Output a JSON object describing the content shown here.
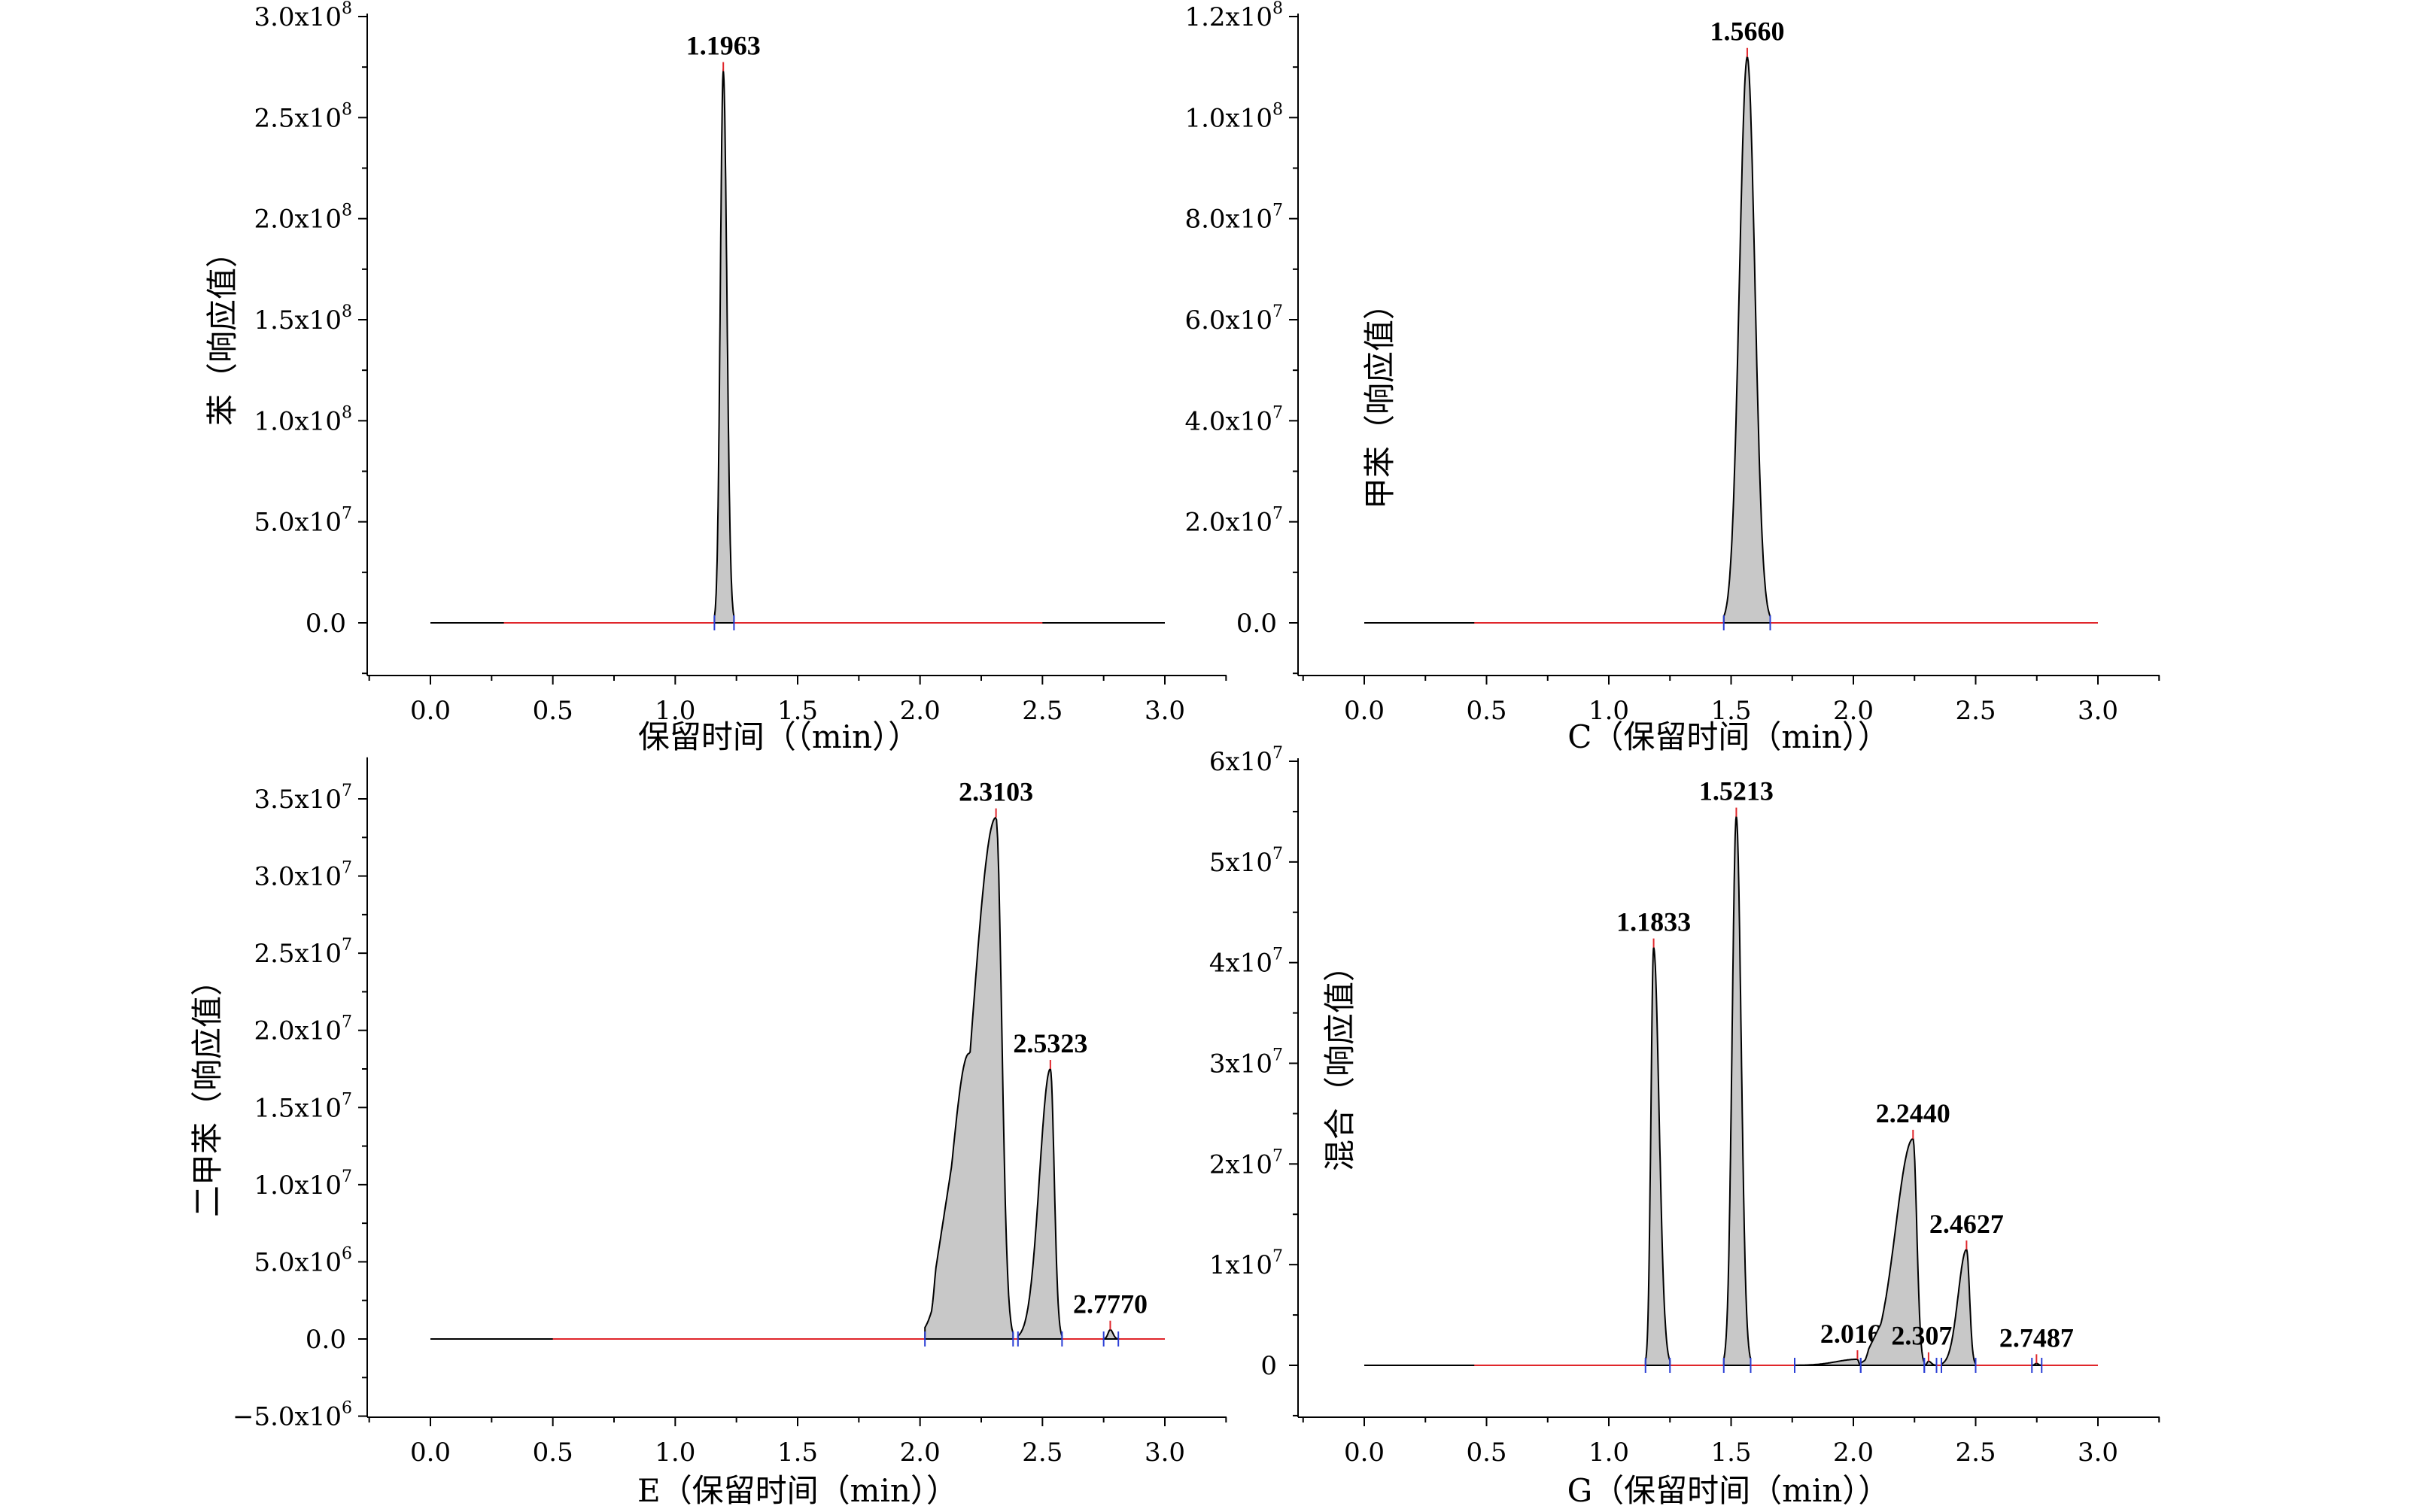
{
  "chart_data": [
    {
      "type": "line",
      "title": "",
      "xlabel": "保留时间（（min））",
      "ylabel": "苯（响应值）",
      "xlim": [
        -0.25,
        3.25
      ],
      "ylim": [
        -25000000.0,
        300000000.0
      ],
      "x_ticks": [
        {
          "v": 0,
          "label": "0.0"
        },
        {
          "v": 0.5,
          "label": "0.5"
        },
        {
          "v": 1,
          "label": "1.0"
        },
        {
          "v": 1.5,
          "label": "1.5"
        },
        {
          "v": 2,
          "label": "2.0"
        },
        {
          "v": 2.5,
          "label": "2.5"
        },
        {
          "v": 3,
          "label": "3.0"
        }
      ],
      "y_ticks": [
        {
          "v": 0,
          "mant": "0.0",
          "exp": ""
        },
        {
          "v": 50000000.0,
          "mant": "5.0x10",
          "exp": "7"
        },
        {
          "v": 100000000.0,
          "mant": "1.0x10",
          "exp": "8"
        },
        {
          "v": 150000000.0,
          "mant": "1.5x10",
          "exp": "8"
        },
        {
          "v": 200000000.0,
          "mant": "2.0x10",
          "exp": "8"
        },
        {
          "v": 250000000.0,
          "mant": "2.5x10",
          "exp": "8"
        },
        {
          "v": 300000000.0,
          "mant": "3.0x10",
          "exp": "8"
        }
      ],
      "baseline": {
        "x0": 0.0,
        "x1": 3.0,
        "red_from": 0.3,
        "red_to": 2.5
      },
      "peaks": [
        {
          "label": "1.1963",
          "rt": 1.1963,
          "height": 273000000.0,
          "left": 1.16,
          "right": 1.24,
          "shoulder": null
        }
      ]
    },
    {
      "type": "line",
      "title": "",
      "xlabel": "C（保留时间（min））",
      "ylabel": "甲苯（响应值）",
      "xlim": [
        -0.25,
        3.25
      ],
      "ylim": [
        -2500000.0,
        120000000.0
      ],
      "x_ticks": [
        {
          "v": 0,
          "label": "0.0"
        },
        {
          "v": 0.5,
          "label": "0.5"
        },
        {
          "v": 1,
          "label": "1.0"
        },
        {
          "v": 1.5,
          "label": "1.5"
        },
        {
          "v": 2,
          "label": "2.0"
        },
        {
          "v": 2.5,
          "label": "2.5"
        },
        {
          "v": 3,
          "label": "3.0"
        }
      ],
      "y_ticks": [
        {
          "v": 0,
          "mant": "0.0",
          "exp": ""
        },
        {
          "v": 20000000.0,
          "mant": "2.0x10",
          "exp": "7"
        },
        {
          "v": 40000000.0,
          "mant": "4.0x10",
          "exp": "7"
        },
        {
          "v": 60000000.0,
          "mant": "6.0x10",
          "exp": "7"
        },
        {
          "v": 80000000.0,
          "mant": "8.0x10",
          "exp": "7"
        },
        {
          "v": 100000000.0,
          "mant": "1.0x10",
          "exp": "8"
        },
        {
          "v": 120000000.0,
          "mant": "1.2x10",
          "exp": "8"
        }
      ],
      "baseline": {
        "x0": 0.0,
        "x1": 3.0,
        "red_from": 0.45,
        "red_to": 3.0
      },
      "peaks": [
        {
          "label": "1.5660",
          "rt": 1.566,
          "height": 112000000.0,
          "left": 1.47,
          "right": 1.66,
          "shoulder": null
        }
      ]
    },
    {
      "type": "line",
      "title": "",
      "xlabel": "E（保留时间（min））",
      "ylabel": "二甲苯（响应值）",
      "xlim": [
        -0.25,
        3.25
      ],
      "ylim": [
        -5000000.0,
        37500000.0
      ],
      "x_ticks": [
        {
          "v": 0,
          "label": "0.0"
        },
        {
          "v": 0.5,
          "label": "0.5"
        },
        {
          "v": 1,
          "label": "1.0"
        },
        {
          "v": 1.5,
          "label": "1.5"
        },
        {
          "v": 2,
          "label": "2.0"
        },
        {
          "v": 2.5,
          "label": "2.5"
        },
        {
          "v": 3,
          "label": "3.0"
        }
      ],
      "y_ticks": [
        {
          "v": -5000000.0,
          "mant": "−5.0x10",
          "exp": "6"
        },
        {
          "v": 0,
          "mant": "0.0",
          "exp": ""
        },
        {
          "v": 5000000.0,
          "mant": "5.0x10",
          "exp": "6"
        },
        {
          "v": 10000000.0,
          "mant": "1.0x10",
          "exp": "7"
        },
        {
          "v": 15000000.0,
          "mant": "1.5x10",
          "exp": "7"
        },
        {
          "v": 20000000.0,
          "mant": "2.0x10",
          "exp": "7"
        },
        {
          "v": 25000000.0,
          "mant": "2.5x10",
          "exp": "7"
        },
        {
          "v": 30000000.0,
          "mant": "3.0x10",
          "exp": "7"
        },
        {
          "v": 35000000.0,
          "mant": "3.5x10",
          "exp": "7"
        }
      ],
      "baseline": {
        "x0": 0.0,
        "x1": 3.0,
        "red_from": 0.5,
        "red_to": 3.0
      },
      "peaks": [
        {
          "label": "2.3103",
          "rt": 2.3103,
          "height": 33800000.0,
          "left": 2.02,
          "right": 2.38,
          "shoulder": {
            "x": 2.2,
            "y": 18500000.0
          }
        },
        {
          "label": "2.5323",
          "rt": 2.5323,
          "height": 17500000.0,
          "left": 2.4,
          "right": 2.58,
          "shoulder": null
        },
        {
          "label": "2.7770",
          "rt": 2.777,
          "height": 600000.0,
          "left": 2.75,
          "right": 2.81,
          "shoulder": null
        }
      ]
    },
    {
      "type": "line",
      "title": "",
      "xlabel": "G（保留时间（min））",
      "ylabel": "混合（响应值）",
      "xlim": [
        -0.25,
        3.25
      ],
      "ylim": [
        -5000000.0,
        60000000.0
      ],
      "x_ticks": [
        {
          "v": 0,
          "label": "0.0"
        },
        {
          "v": 0.5,
          "label": "0.5"
        },
        {
          "v": 1,
          "label": "1.0"
        },
        {
          "v": 1.5,
          "label": "1.5"
        },
        {
          "v": 2,
          "label": "2.0"
        },
        {
          "v": 2.5,
          "label": "2.5"
        },
        {
          "v": 3,
          "label": "3.0"
        }
      ],
      "y_ticks": [
        {
          "v": 0,
          "mant": "0",
          "exp": ""
        },
        {
          "v": 10000000.0,
          "mant": "1x10",
          "exp": "7"
        },
        {
          "v": 20000000.0,
          "mant": "2x10",
          "exp": "7"
        },
        {
          "v": 30000000.0,
          "mant": "3x10",
          "exp": "7"
        },
        {
          "v": 40000000.0,
          "mant": "4x10",
          "exp": "7"
        },
        {
          "v": 50000000.0,
          "mant": "5x10",
          "exp": "7"
        },
        {
          "v": 60000000.0,
          "mant": "6x10",
          "exp": "7"
        }
      ],
      "baseline": {
        "x0": 0.0,
        "x1": 3.0,
        "red_from": 0.45,
        "red_to": 3.0
      },
      "peaks": [
        {
          "label": "1.1833",
          "rt": 1.1833,
          "height": 41500000.0,
          "left": 1.15,
          "right": 1.25,
          "shoulder": null
        },
        {
          "label": "1.5213",
          "rt": 1.5213,
          "height": 54500000.0,
          "left": 1.47,
          "right": 1.58,
          "shoulder": null
        },
        {
          "label": "2.0167",
          "rt": 2.0167,
          "height": 600000.0,
          "left": 1.76,
          "right": 2.03,
          "shoulder": null
        },
        {
          "label": "2.2440",
          "rt": 2.244,
          "height": 22500000.0,
          "left": 2.03,
          "right": 2.29,
          "shoulder": {
            "x": 2.17,
            "y": 7000000.0
          }
        },
        {
          "label": "2.3073",
          "rt": 2.3073,
          "height": 400000.0,
          "left": 2.29,
          "right": 2.34,
          "shoulder": null
        },
        {
          "label": "2.4627",
          "rt": 2.4627,
          "height": 11500000.0,
          "left": 2.36,
          "right": 2.5,
          "shoulder": null
        },
        {
          "label": "2.7487",
          "rt": 2.7487,
          "height": 200000.0,
          "left": 2.73,
          "right": 2.77,
          "shoulder": null
        }
      ]
    }
  ]
}
